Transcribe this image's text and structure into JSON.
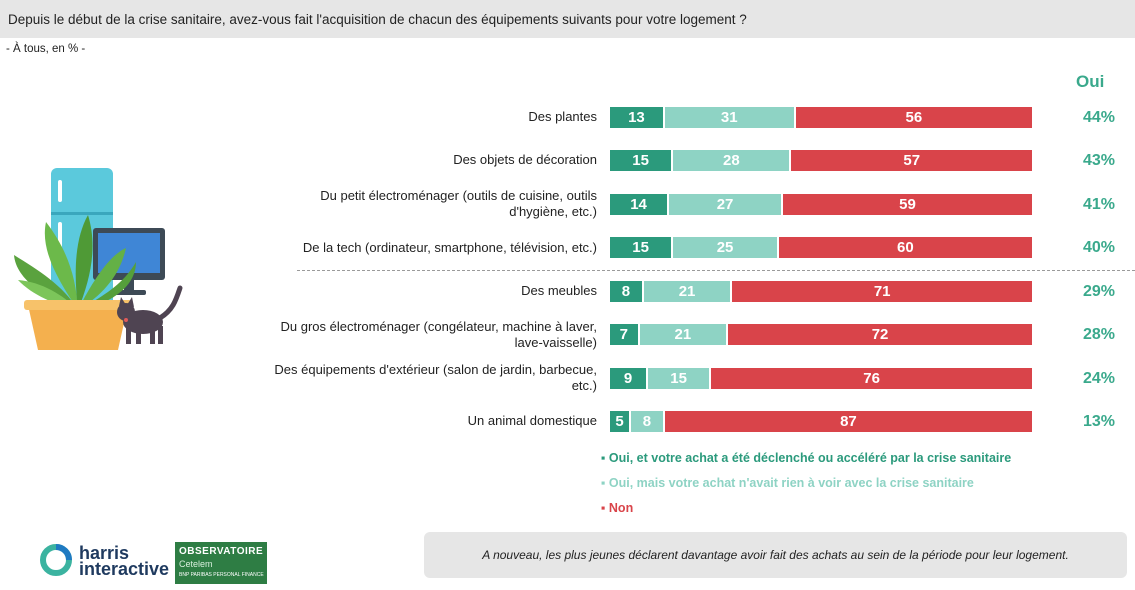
{
  "title": "Depuis le début de la crise sanitaire, avez-vous fait l'acquisition de chacun des équipements suivants pour votre logement ?",
  "subtitle": "- À tous, en % -",
  "oui_header": "Oui",
  "colors": {
    "s1": "#2b9a7c",
    "s2": "#8ed3c4",
    "s3": "#d9444a",
    "accent": "#3aa98c"
  },
  "chart_data": {
    "type": "bar",
    "orientation": "horizontal",
    "stacked": true,
    "categories": [
      "Des plantes",
      "Des objets de décoration",
      "Du petit électroménager (outils de cuisine, outils d'hygiène, etc.)",
      "De la tech (ordinateur, smartphone, télévision, etc.)",
      "Des meubles",
      "Du gros électroménager (congélateur, machine à laver, lave-vaisselle)",
      "Des équipements d'extérieur (salon de jardin, barbecue, etc.)",
      "Un animal domestique"
    ],
    "series": [
      {
        "name": "Oui, et votre achat a été déclenché ou accéléré par la crise sanitaire",
        "values": [
          13,
          15,
          14,
          15,
          8,
          7,
          9,
          5
        ]
      },
      {
        "name": "Oui, mais votre achat n'avait rien à voir avec la crise sanitaire",
        "values": [
          31,
          28,
          27,
          25,
          21,
          21,
          15,
          8
        ]
      },
      {
        "name": "Non",
        "values": [
          56,
          57,
          59,
          60,
          71,
          72,
          76,
          87
        ]
      }
    ],
    "oui_totals": [
      "44%",
      "43%",
      "41%",
      "40%",
      "29%",
      "28%",
      "24%",
      "13%"
    ],
    "legend_position": "bottom"
  },
  "rows": [
    {
      "label_lines": [
        "Des plantes"
      ]
    },
    {
      "label_lines": [
        "Des objets de décoration"
      ]
    },
    {
      "label_lines": [
        "Du petit électroménager (outils de cuisine, outils",
        "d'hygiène, etc.)"
      ]
    },
    {
      "label_lines": [
        "De la tech (ordinateur, smartphone, télévision, etc.)"
      ]
    },
    {
      "label_lines": [
        "Des meubles"
      ]
    },
    {
      "label_lines": [
        "Du gros électroménager (congélateur, machine à laver,",
        "lave-vaisselle)"
      ]
    },
    {
      "label_lines": [
        "Des équipements d'extérieur (salon de jardin, barbecue,",
        "etc.)"
      ]
    },
    {
      "label_lines": [
        "Un animal domestique"
      ]
    }
  ],
  "legend": [
    "▪ Oui, et votre achat a été déclenché ou accéléré par la crise sanitaire",
    "▪ Oui, mais votre achat n'avait rien à voir avec la crise sanitaire",
    "▪ Non"
  ],
  "footer_note": "A nouveau, les plus jeunes déclarent davantage avoir fait des achats au sein de la période pour leur logement.",
  "logos": {
    "harris_line1": "harris",
    "harris_line2": "interactive",
    "observatoire": "OBSERVATOIRE",
    "cetelem": "Cetelem",
    "bnp": "BNP PARIBAS PERSONAL FINANCE"
  }
}
